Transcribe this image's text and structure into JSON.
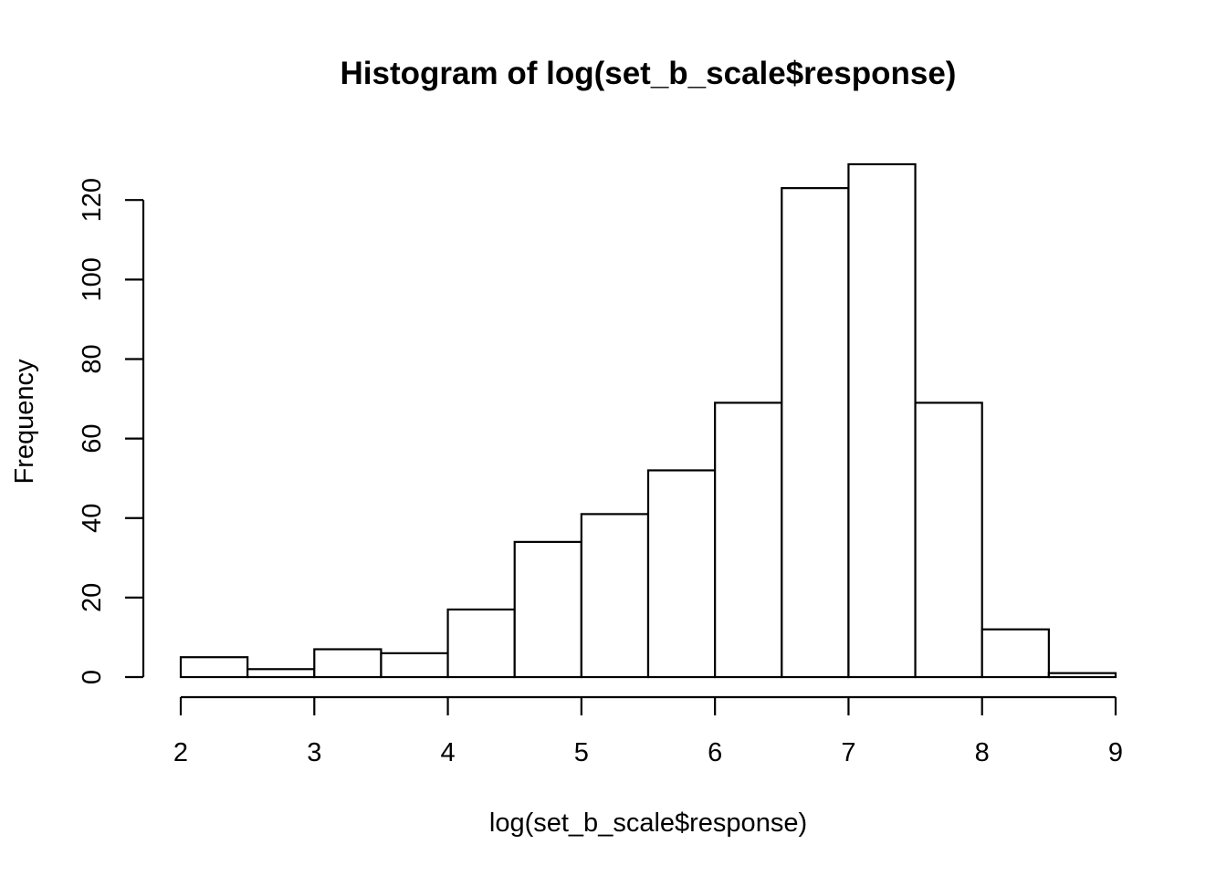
{
  "chart_data": {
    "type": "bar",
    "title": "Histogram of log(set_b_scale$response)",
    "xlabel": "log(set_b_scale$response)",
    "ylabel": "Frequency",
    "bin_edges": [
      2,
      2.5,
      3,
      3.5,
      4,
      4.5,
      5,
      5.5,
      6,
      6.5,
      7,
      7.5,
      8,
      8.5,
      9
    ],
    "values": [
      5,
      2,
      7,
      6,
      17,
      34,
      41,
      52,
      69,
      123,
      129,
      69,
      12,
      1
    ],
    "xlim": [
      2,
      9
    ],
    "ylim": [
      0,
      129
    ],
    "x_ticks": [
      "2",
      "3",
      "4",
      "5",
      "6",
      "7",
      "8",
      "9"
    ],
    "y_ticks": [
      "0",
      "20",
      "40",
      "60",
      "80",
      "100",
      "120"
    ],
    "grid": false,
    "colors": {
      "bar_fill": "#ffffff",
      "bar_stroke": "#000000"
    }
  }
}
